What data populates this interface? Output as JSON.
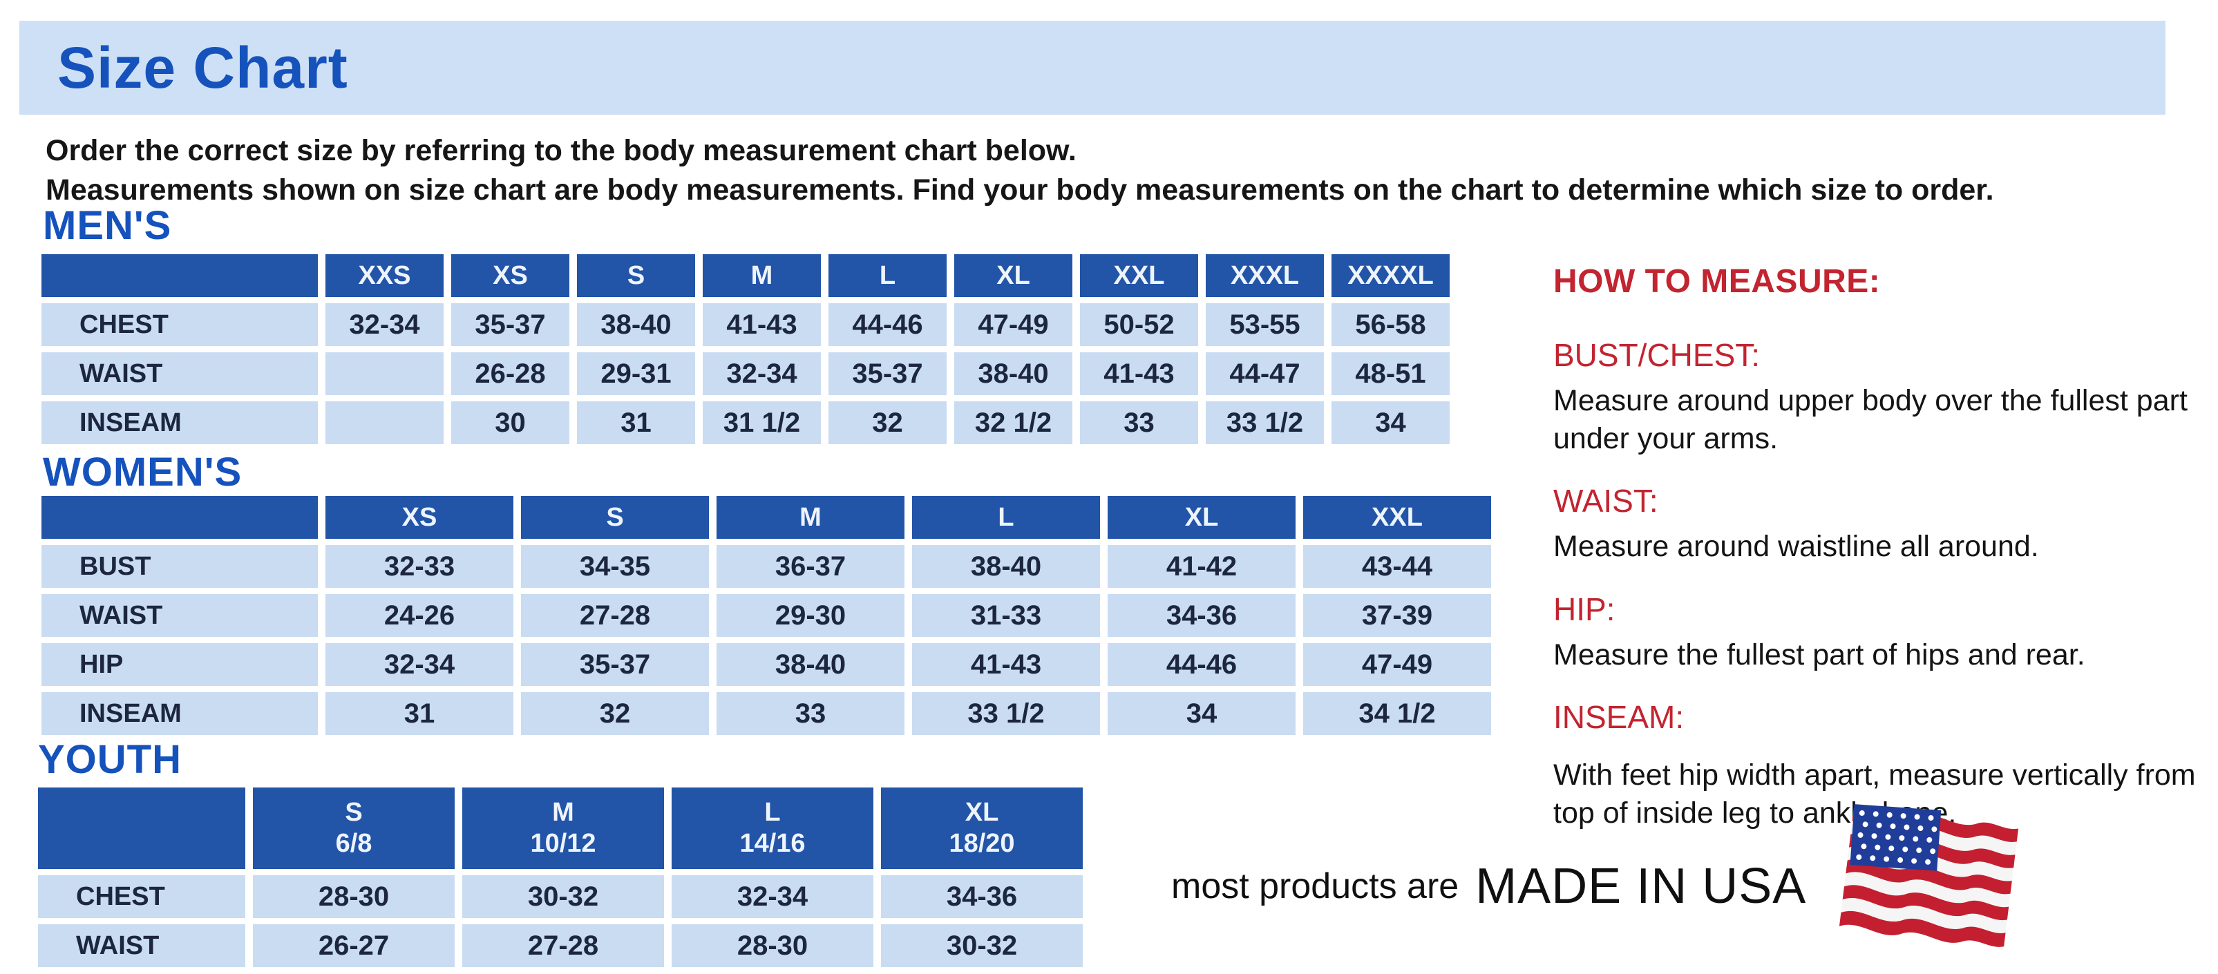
{
  "header": {
    "title": "Size Chart"
  },
  "intro": {
    "line1": "Order the correct size by referring to the body measurement chart below.",
    "line2": "Measurements shown on size chart are body measurements.  Find your body measurements on the chart to determine which size to order."
  },
  "tables": [
    {
      "id": "mens",
      "section_label": "MEN'S",
      "columns": [
        "",
        "XXS",
        "XS",
        "S",
        "M",
        "L",
        "XL",
        "XXL",
        "XXXL",
        "XXXXL"
      ],
      "rows": [
        {
          "label": "CHEST",
          "values": [
            "32-34",
            "35-37",
            "38-40",
            "41-43",
            "44-46",
            "47-49",
            "50-52",
            "53-55",
            "56-58"
          ]
        },
        {
          "label": "WAIST",
          "values": [
            "",
            "26-28",
            "29-31",
            "32-34",
            "35-37",
            "38-40",
            "41-43",
            "44-47",
            "48-51"
          ]
        },
        {
          "label": "INSEAM",
          "values": [
            "",
            "30",
            "31",
            "31 1/2",
            "32",
            "32 1/2",
            "33",
            "33 1/2",
            "34"
          ]
        }
      ]
    },
    {
      "id": "womens",
      "section_label": "WOMEN'S",
      "columns": [
        "",
        "XS",
        "S",
        "M",
        "L",
        "XL",
        "XXL"
      ],
      "rows": [
        {
          "label": "BUST",
          "values": [
            "32-33",
            "34-35",
            "36-37",
            "38-40",
            "41-42",
            "43-44"
          ]
        },
        {
          "label": "WAIST",
          "values": [
            "24-26",
            "27-28",
            "29-30",
            "31-33",
            "34-36",
            "37-39"
          ]
        },
        {
          "label": "HIP",
          "values": [
            "32-34",
            "35-37",
            "38-40",
            "41-43",
            "44-46",
            "47-49"
          ]
        },
        {
          "label": "INSEAM",
          "values": [
            "31",
            "32",
            "33",
            "33 1/2",
            "34",
            "34 1/2"
          ]
        }
      ]
    },
    {
      "id": "youth",
      "section_label": "YOUTH",
      "columns": [
        "",
        "S\n6/8",
        "M\n10/12",
        "L\n14/16",
        "XL\n18/20"
      ],
      "rows": [
        {
          "label": "CHEST",
          "values": [
            "28-30",
            "30-32",
            "32-34",
            "34-36"
          ]
        },
        {
          "label": "WAIST",
          "values": [
            "26-27",
            "27-28",
            "28-30",
            "30-32"
          ]
        }
      ]
    }
  ],
  "how_to_measure": {
    "title": "HOW TO MEASURE:",
    "items": [
      {
        "label": "BUST/CHEST:",
        "text": "Measure around upper body over the fullest part under your arms."
      },
      {
        "label": "WAIST:",
        "text": "Measure around waistline all around."
      },
      {
        "label": "HIP:",
        "text": "Measure the fullest part of hips and rear."
      },
      {
        "label": "INSEAM:",
        "text": "With feet hip width apart, measure vertically from top of inside leg to ankle bone."
      }
    ]
  },
  "made_in": {
    "prefix": "most products are",
    "emphasis": "MADE IN USA"
  },
  "flag_icon": "us-flag",
  "colors": {
    "banner_bg": "#cde0f5",
    "heading_blue": "#1552bc",
    "table_header_blue": "#2254a8",
    "cell_blue": "#c9dcf2",
    "accent_red": "#c22430",
    "flag_red": "#c41f30",
    "flag_blue": "#1f3d99"
  }
}
